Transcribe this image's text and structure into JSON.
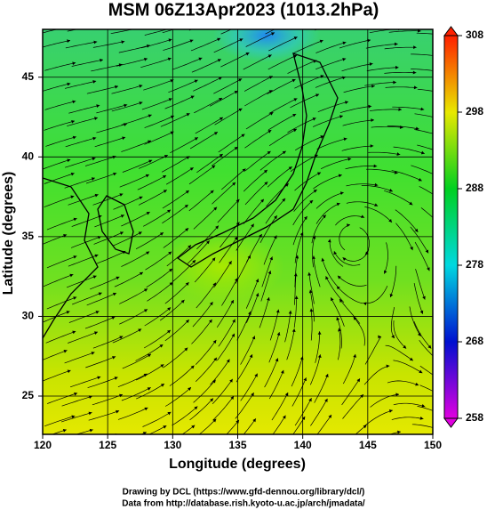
{
  "map": {
    "title": "MSM 06Z13Apr2023 (1013.2hPa)",
    "x_label": "Longitude (degrees)",
    "y_label": "Latitude  (degrees)",
    "xlim": [
      120,
      150
    ],
    "ylim": [
      22.6,
      48
    ],
    "xticks": [
      120,
      125,
      130,
      135,
      140,
      145,
      150
    ],
    "yticks": [
      25,
      30,
      35,
      40,
      45
    ],
    "grid": true,
    "colorbar": {
      "lim": [
        258,
        308
      ],
      "ticks": [
        258,
        268,
        278,
        288,
        298,
        308
      ]
    }
  },
  "footer": [
    "Drawing by DCL (https://www.gfd-dennou.org/library/dcl/)",
    "Data from http://database.rish.kyoto-u.ac.jp/arch/jmadata/"
  ]
}
